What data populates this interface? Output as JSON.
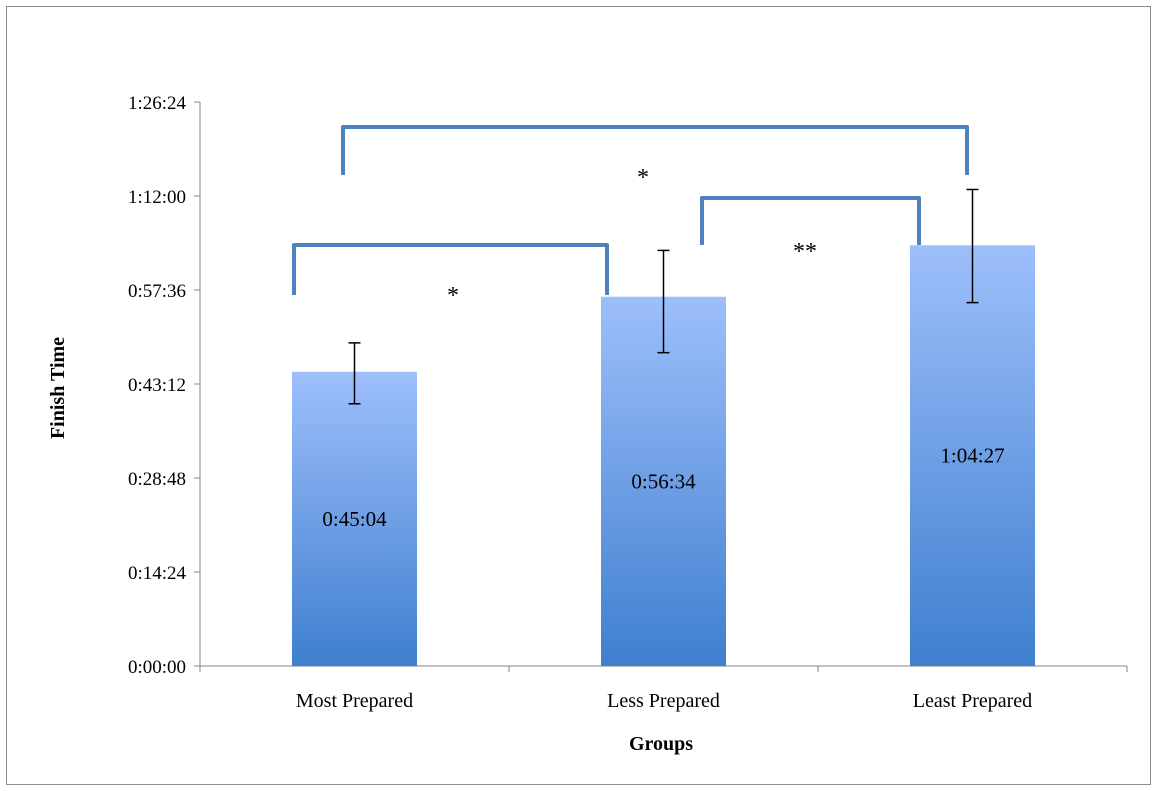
{
  "chart_data": {
    "type": "bar",
    "title": "",
    "xlabel": "Groups",
    "ylabel": "Finish Time",
    "categories": [
      "Most Prepared",
      "Less Prepared",
      "Least Prepared"
    ],
    "values": [
      2704,
      3394,
      3867
    ],
    "value_labels": [
      "0:45:04",
      "0:56:34",
      "1:04:27"
    ],
    "error_low": [
      2410,
      2880,
      3340
    ],
    "error_high": [
      2970,
      3820,
      4380
    ],
    "ylim": [
      0,
      5184
    ],
    "yticks": [
      0,
      864,
      1728,
      2592,
      3456,
      4320,
      5184
    ],
    "ytick_labels": [
      "0:00:00",
      "0:14:24",
      "0:28:48",
      "0:43:12",
      "0:57:36",
      "1:12:00",
      "1:26:24"
    ],
    "value_unit": "seconds",
    "grid": false,
    "legend": "none",
    "significance": [
      {
        "from": 0,
        "to": 1,
        "label": "*"
      },
      {
        "from": 1,
        "to": 2,
        "label": "**"
      },
      {
        "from": 0,
        "to": 2,
        "label": "*"
      }
    ],
    "colors": {
      "bar_top": "#9dbffb",
      "bar_bottom": "#3f7fcf",
      "bracket": "#4f81bd",
      "axis": "#868686",
      "error_bar": "#000000"
    }
  }
}
